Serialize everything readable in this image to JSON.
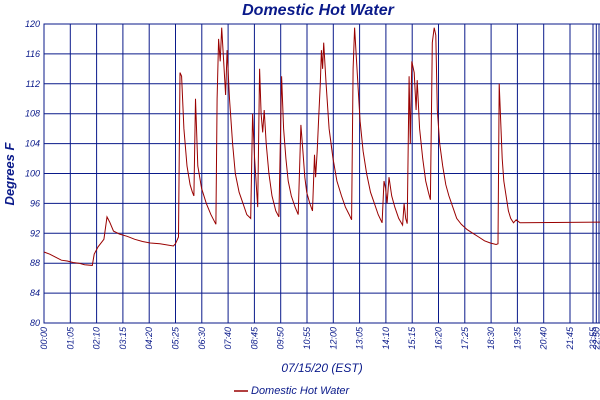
{
  "chart_data": {
    "type": "line",
    "title": "Domestic Hot Water",
    "xlabel": "07/15/20 (EST)",
    "ylabel": "Degrees F",
    "ylim": [
      80,
      120
    ],
    "yticks": [
      80,
      84,
      88,
      92,
      96,
      100,
      104,
      108,
      112,
      116,
      120
    ],
    "xlim_minutes": [
      0,
      1439
    ],
    "xtick_labels": [
      "00:00",
      "01:05",
      "02:10",
      "03:15",
      "04:20",
      "05:25",
      "06:30",
      "07:40",
      "08:45",
      "09:50",
      "10:55",
      "12:00",
      "13:05",
      "14:10",
      "15:15",
      "16:20",
      "17:25",
      "18:30",
      "19:35",
      "20:40",
      "21:45",
      "22:50",
      "23:55"
    ],
    "grid": true,
    "legend_position": "bottom-center",
    "colors": {
      "series": "#990000",
      "grid": "#0a1a8a",
      "text": "#0a1a8a"
    },
    "series": [
      {
        "name": "Domestic Hot Water",
        "points": [
          [
            0,
            89.5
          ],
          [
            15,
            89.2
          ],
          [
            30,
            88.8
          ],
          [
            45,
            88.4
          ],
          [
            60,
            88.3
          ],
          [
            75,
            88.1
          ],
          [
            90,
            88.0
          ],
          [
            105,
            87.8
          ],
          [
            125,
            87.7
          ],
          [
            130,
            89.2
          ],
          [
            140,
            90.2
          ],
          [
            155,
            91.2
          ],
          [
            163,
            94.2
          ],
          [
            170,
            93.5
          ],
          [
            180,
            92.3
          ],
          [
            195,
            91.9
          ],
          [
            215,
            91.6
          ],
          [
            235,
            91.2
          ],
          [
            255,
            90.9
          ],
          [
            275,
            90.7
          ],
          [
            300,
            90.6
          ],
          [
            335,
            90.3
          ],
          [
            340,
            90.6
          ],
          [
            348,
            91.5
          ],
          [
            352,
            113.5
          ],
          [
            356,
            113.0
          ],
          [
            362,
            106
          ],
          [
            370,
            101
          ],
          [
            378,
            98.5
          ],
          [
            384,
            97.5
          ],
          [
            388,
            97.0
          ],
          [
            392,
            110.0
          ],
          [
            398,
            101
          ],
          [
            408,
            98
          ],
          [
            420,
            96
          ],
          [
            432,
            94.5
          ],
          [
            445,
            93.2
          ],
          [
            448,
            110.0
          ],
          [
            452,
            118.0
          ],
          [
            456,
            115.0
          ],
          [
            460,
            119.5
          ],
          [
            466,
            114
          ],
          [
            470,
            110.5
          ],
          [
            474,
            116.5
          ],
          [
            480,
            110
          ],
          [
            488,
            104
          ],
          [
            495,
            100
          ],
          [
            505,
            97.5
          ],
          [
            515,
            96
          ],
          [
            525,
            94.5
          ],
          [
            535,
            94.0
          ],
          [
            540,
            108.0
          ],
          [
            545,
            102
          ],
          [
            550,
            98
          ],
          [
            553,
            95.5
          ],
          [
            558,
            114.0
          ],
          [
            562,
            108
          ],
          [
            566,
            105.5
          ],
          [
            570,
            108.5
          ],
          [
            575,
            104
          ],
          [
            582,
            100
          ],
          [
            590,
            97
          ],
          [
            600,
            95
          ],
          [
            608,
            94.2
          ],
          [
            615,
            113.0
          ],
          [
            620,
            106
          ],
          [
            626,
            102
          ],
          [
            632,
            99
          ],
          [
            640,
            97
          ],
          [
            650,
            95.5
          ],
          [
            658,
            94.5
          ],
          [
            665,
            106.5
          ],
          [
            670,
            103
          ],
          [
            675,
            99.5
          ],
          [
            680,
            97.5
          ],
          [
            688,
            96
          ],
          [
            695,
            95.0
          ],
          [
            700,
            102.5
          ],
          [
            703,
            99.5
          ],
          [
            707,
            103
          ],
          [
            711,
            107.5
          ],
          [
            715,
            112
          ],
          [
            718,
            116.5
          ],
          [
            721,
            114
          ],
          [
            724,
            117.5
          ],
          [
            730,
            112
          ],
          [
            738,
            106
          ],
          [
            748,
            102
          ],
          [
            758,
            99
          ],
          [
            770,
            97
          ],
          [
            780,
            95.5
          ],
          [
            790,
            94.5
          ],
          [
            796,
            93.8
          ],
          [
            800,
            114.0
          ],
          [
            804,
            119.5
          ],
          [
            810,
            114
          ],
          [
            818,
            107
          ],
          [
            826,
            103
          ],
          [
            835,
            100
          ],
          [
            845,
            97.5
          ],
          [
            855,
            96
          ],
          [
            865,
            94.5
          ],
          [
            875,
            93.4
          ],
          [
            880,
            99.0
          ],
          [
            884,
            98
          ],
          [
            888,
            96
          ],
          [
            893,
            99.5
          ],
          [
            900,
            97
          ],
          [
            908,
            95.5
          ],
          [
            918,
            94
          ],
          [
            928,
            93.1
          ],
          [
            932,
            96.0
          ],
          [
            936,
            94
          ],
          [
            940,
            93.3
          ],
          [
            945,
            113.0
          ],
          [
            948,
            104
          ],
          [
            952,
            115.0
          ],
          [
            958,
            113.5
          ],
          [
            963,
            108.5
          ],
          [
            966,
            112.5
          ],
          [
            972,
            106
          ],
          [
            980,
            102
          ],
          [
            988,
            99
          ],
          [
            995,
            97.5
          ],
          [
            1000,
            96.5
          ],
          [
            1005,
            117.5
          ],
          [
            1010,
            119.5
          ],
          [
            1014,
            118.5
          ],
          [
            1018,
            108.5
          ],
          [
            1024,
            104
          ],
          [
            1032,
            101
          ],
          [
            1040,
            98.5
          ],
          [
            1048,
            97
          ],
          [
            1058,
            95.5
          ],
          [
            1068,
            94
          ],
          [
            1080,
            93.2
          ],
          [
            1095,
            92.5
          ],
          [
            1110,
            92.0
          ],
          [
            1125,
            91.5
          ],
          [
            1140,
            91.0
          ],
          [
            1155,
            90.7
          ],
          [
            1170,
            90.5
          ],
          [
            1175,
            90.6
          ],
          [
            1178,
            112.0
          ],
          [
            1182,
            107
          ],
          [
            1186,
            102
          ],
          [
            1190,
            99
          ],
          [
            1196,
            97
          ],
          [
            1202,
            95
          ],
          [
            1208,
            94
          ],
          [
            1215,
            93.4
          ],
          [
            1222,
            93.8
          ],
          [
            1232,
            93.4
          ],
          [
            1439,
            93.5
          ]
        ]
      }
    ]
  }
}
